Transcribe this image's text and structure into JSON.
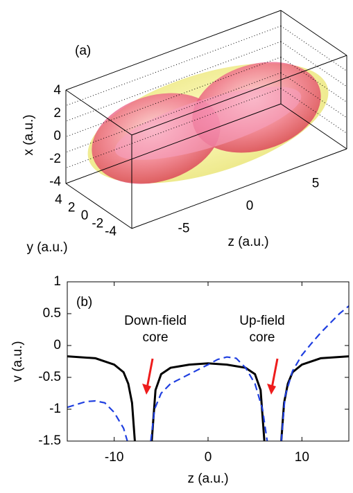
{
  "chart_data": [
    {
      "type": "surface3d",
      "annotation": "(a)",
      "xlabel": "x (a.u.)",
      "ylabel": "y (a.u.)",
      "zlabel": "z (a.u.)",
      "xticks": [
        4,
        2,
        0,
        -2,
        -4
      ],
      "yticks": [
        4,
        2,
        0,
        -2,
        -4
      ],
      "zticks": [
        5,
        0,
        -5
      ],
      "grid": true
    },
    {
      "type": "line",
      "annotation": "(b)",
      "xlabel": "z (a.u.)",
      "ylabel": "v (a.u.)",
      "xlim": [
        -15,
        15
      ],
      "ylim": [
        -1.5,
        1
      ],
      "xticks": [
        -10,
        0,
        10
      ],
      "yticks": [
        1,
        0.5,
        0,
        -0.5,
        -1,
        -1.5
      ],
      "notes": [
        {
          "lines": [
            "Down-field",
            "core"
          ],
          "x": -6.5,
          "y": -0.75
        },
        {
          "lines": [
            "Up-field",
            "core"
          ],
          "x": 6.8,
          "y": -0.75
        }
      ],
      "note_color": "#ee1c1c",
      "series": [
        {
          "color": "#000000",
          "style": "solid",
          "x": [
            -15,
            -12,
            -10,
            -9,
            -8.5,
            -8.1,
            -7.8,
            -7,
            -6,
            -5.6,
            -5,
            -4,
            -2,
            0,
            2,
            4,
            5,
            5.6,
            6,
            7,
            7.8,
            8.1,
            8.5,
            9,
            10,
            12,
            15
          ],
          "values": [
            -0.17,
            -0.2,
            -0.3,
            -0.42,
            -0.6,
            -0.9,
            -1.5,
            null,
            -1.5,
            -0.7,
            -0.45,
            -0.35,
            -0.3,
            -0.28,
            -0.3,
            -0.35,
            -0.45,
            -0.7,
            -1.5,
            null,
            -1.5,
            -0.9,
            -0.6,
            -0.42,
            -0.3,
            -0.2,
            -0.17
          ]
        },
        {
          "color": "#1f3fe0",
          "style": "dashed",
          "x": [
            -15,
            -13,
            -12,
            -11,
            -10,
            -9,
            -8.6,
            -7,
            -6.1,
            -5.7,
            -5,
            -4,
            -2,
            0,
            1,
            2,
            3,
            4,
            5,
            5.8,
            6.3,
            7,
            7.8,
            8.2,
            9,
            10,
            11,
            12,
            13,
            14,
            15
          ],
          "values": [
            -0.97,
            -0.88,
            -0.87,
            -0.9,
            -1.05,
            -1.3,
            -1.5,
            null,
            -1.5,
            -1.0,
            -0.75,
            -0.6,
            -0.45,
            -0.3,
            -0.22,
            -0.18,
            -0.2,
            -0.35,
            -0.6,
            -1.0,
            -1.5,
            null,
            -1.5,
            -0.8,
            -0.4,
            -0.15,
            0.03,
            0.2,
            0.35,
            0.5,
            0.62
          ]
        }
      ]
    }
  ]
}
